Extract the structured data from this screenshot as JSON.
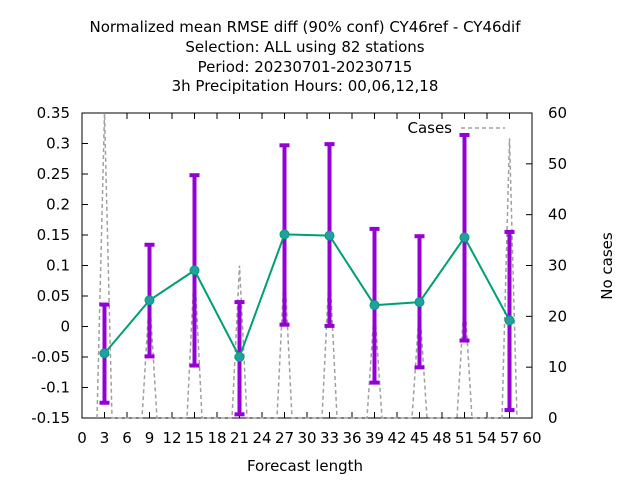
{
  "chart_data": {
    "type": "line",
    "title_lines": [
      "Normalized mean RMSE diff (90% conf) CY46ref - CY46dif",
      "Selection: ALL using    82 stations",
      "Period: 20230701-20230715",
      "3h Precipitation   Hours:  00,06,12,18"
    ],
    "xlabel": "Forecast length",
    "ylabel": "",
    "y2label": "No cases",
    "xlim": [
      0,
      60
    ],
    "ylim": [
      -0.15,
      0.35
    ],
    "y2lim": [
      0,
      60
    ],
    "x_ticks": [
      0,
      3,
      6,
      9,
      12,
      15,
      18,
      21,
      24,
      27,
      30,
      33,
      36,
      39,
      42,
      45,
      48,
      51,
      54,
      57,
      60
    ],
    "x_tick_labels": [
      "0",
      "3",
      "6",
      "9",
      "12",
      "15",
      "18",
      "21",
      "24",
      "27",
      "30",
      "33",
      "36",
      "39",
      "42",
      "45",
      "48",
      "51",
      "54",
      "57",
      "60"
    ],
    "y_ticks": [
      -0.15,
      -0.1,
      -0.05,
      0,
      0.05,
      0.1,
      0.15,
      0.2,
      0.25,
      0.3,
      0.35
    ],
    "y_tick_labels": [
      "-0.15",
      "-0.1",
      "-0.05",
      "0",
      "0.05",
      "0.1",
      "0.15",
      "0.2",
      "0.25",
      "0.3",
      "0.35"
    ],
    "y2_ticks": [
      0,
      10,
      20,
      30,
      40,
      50,
      60
    ],
    "y2_tick_labels": [
      "0",
      "10",
      "20",
      "30",
      "40",
      "50",
      "60"
    ],
    "grid": false,
    "legend_position": "top-right",
    "series": [
      {
        "x": [
          3,
          9,
          15,
          21,
          27,
          33,
          39,
          45,
          51,
          57
        ],
        "y": [
          -0.044,
          0.043,
          0.092,
          -0.05,
          0.151,
          0.149,
          0.035,
          0.04,
          0.146,
          0.01
        ],
        "err_low": [
          -0.125,
          -0.049,
          -0.064,
          -0.144,
          0.003,
          0.001,
          -0.092,
          -0.067,
          -0.023,
          -0.137
        ],
        "err_high": [
          0.036,
          0.134,
          0.248,
          0.04,
          0.297,
          0.299,
          0.16,
          0.148,
          0.314,
          0.155
        ],
        "color": "#009e73",
        "error_color": "#9400d3"
      },
      {
        "name": "Cases",
        "axis": "y2",
        "style": "dashed",
        "color": "#a0a0a0",
        "x": [
          2,
          3,
          4,
          8,
          9,
          10,
          14,
          15,
          16,
          20,
          21,
          22,
          26,
          27,
          28,
          32,
          33,
          34,
          38,
          39,
          40,
          44,
          45,
          46,
          50,
          51,
          52,
          56,
          57,
          58
        ],
        "y": [
          0,
          60,
          0,
          0,
          24,
          0,
          0,
          30,
          0,
          0,
          30,
          0,
          0,
          30,
          0,
          0,
          30,
          0,
          0,
          22,
          0,
          0,
          22,
          0,
          0,
          24,
          0,
          0,
          55,
          0
        ]
      }
    ]
  },
  "colors": {
    "line": "#009e73",
    "error_bar": "#9400d3",
    "cases": "#a0a0a0",
    "marker_fill": "#20a0a0"
  }
}
